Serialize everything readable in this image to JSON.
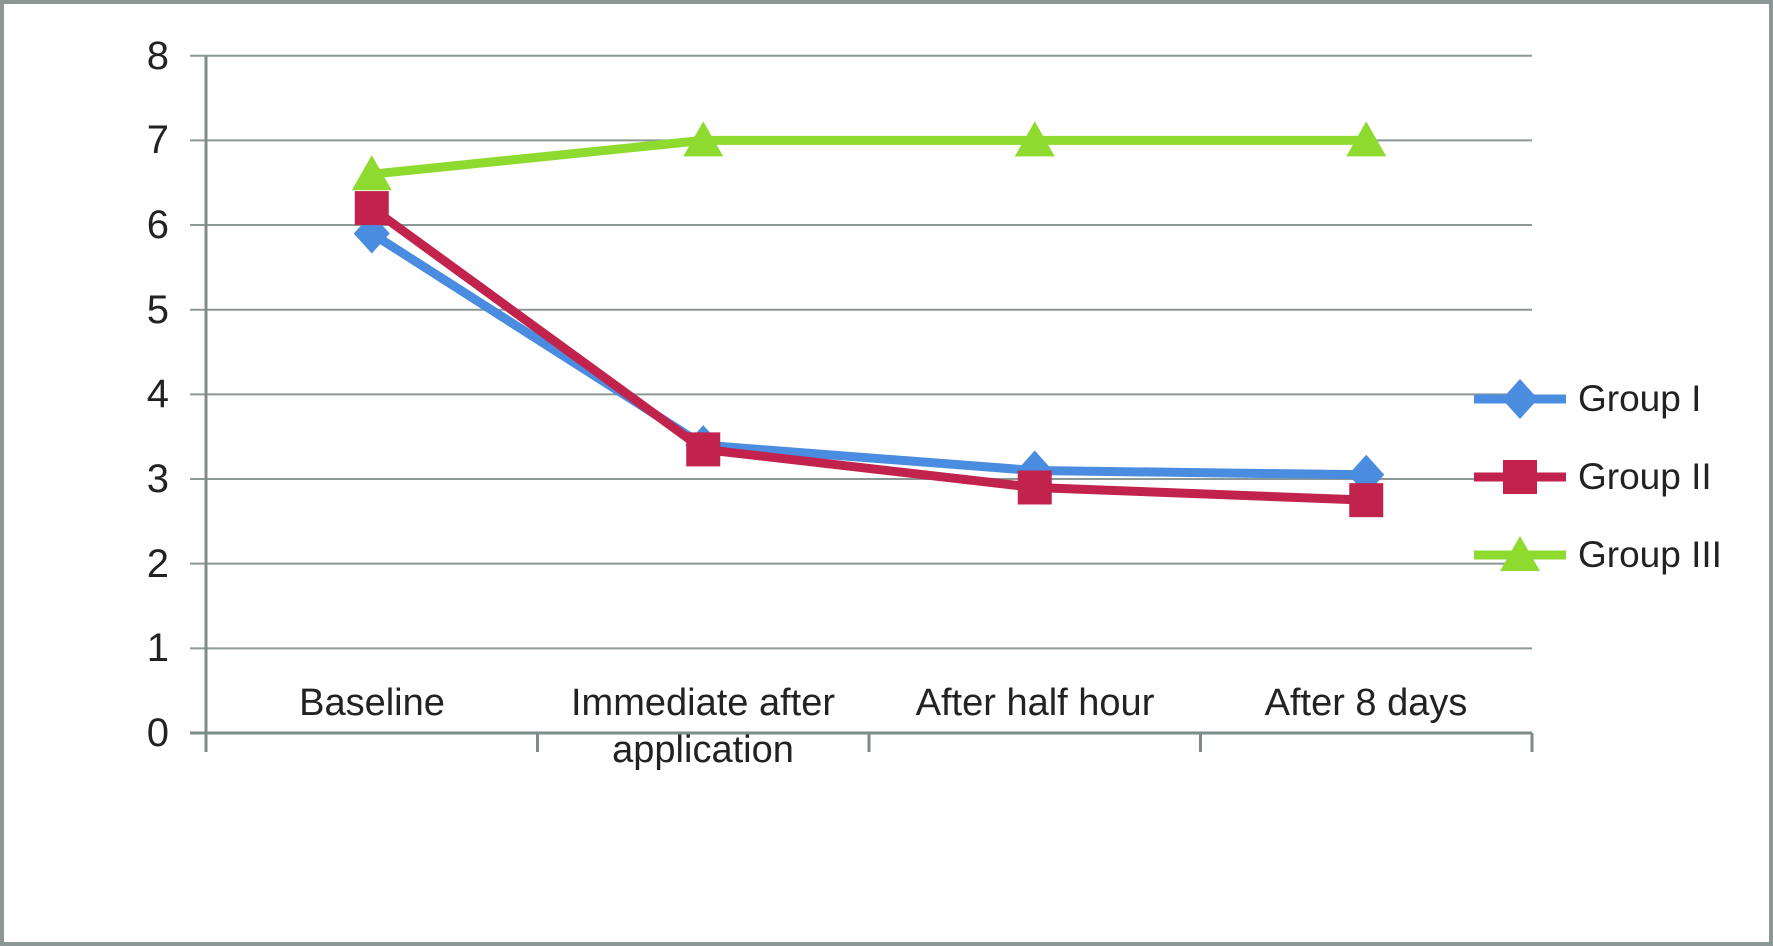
{
  "figure": {
    "background": "#ffffff",
    "border_color": "#8a9795"
  },
  "chart_data": {
    "type": "line",
    "title": "",
    "categories": [
      "Baseline",
      "Immediate after application",
      "After half hour",
      "After 8 days"
    ],
    "series": [
      {
        "name": "Group I",
        "marker": "diamond",
        "color": "#4a8ce0",
        "values": [
          5.9,
          3.4,
          3.1,
          3.05
        ]
      },
      {
        "name": "Group II",
        "marker": "square",
        "color": "#c2234c",
        "values": [
          6.2,
          3.35,
          2.9,
          2.75
        ]
      },
      {
        "name": "Group III",
        "marker": "triangle",
        "color": "#8eda2f",
        "values": [
          6.6,
          7.0,
          7.0,
          7.0
        ]
      }
    ],
    "ylim": [
      0,
      8
    ],
    "yticks": [
      0,
      1,
      2,
      3,
      4,
      5,
      6,
      7,
      8
    ],
    "grid": true,
    "legend_position": "right",
    "grid_color": "#8b9896",
    "axis_color": "#7c8c8a",
    "text_color": "#222222"
  }
}
